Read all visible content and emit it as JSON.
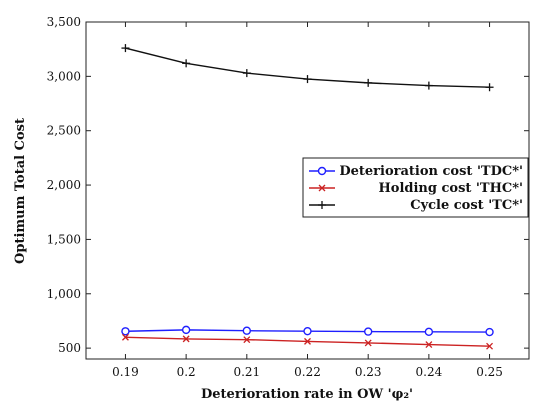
{
  "chart_data": {
    "type": "line",
    "x": [
      0.19,
      0.2,
      0.21,
      0.22,
      0.23,
      0.24,
      0.25
    ],
    "x_tick_labels": [
      "0.19",
      "0.2",
      "0.21",
      "0.22",
      "0.23",
      "0.24",
      "0.25"
    ],
    "y_ticks": [
      500,
      1000,
      1500,
      2000,
      2500,
      3000,
      3500
    ],
    "y_tick_labels": [
      "500",
      "1,000",
      "1,500",
      "2,000",
      "2,500",
      "3,000",
      "3,500"
    ],
    "xlim": [
      0.1835,
      0.2565
    ],
    "ylim": [
      400,
      3500
    ],
    "xlabel": "Deterioration rate in OW 'φ₂'",
    "ylabel": "Optimum Total Cost",
    "legend_position": "right",
    "series": [
      {
        "name": "Deterioration cost 'TDC*'",
        "color": "#1f1fff",
        "marker": "circle",
        "values": [
          655,
          668,
          660,
          656,
          652,
          650,
          648
        ]
      },
      {
        "name": "Holding cost 'THC*'",
        "color": "#cc2222",
        "marker": "x",
        "values": [
          600,
          585,
          578,
          562,
          548,
          533,
          518
        ]
      },
      {
        "name": "Cycle cost 'TC*'",
        "color": "#111111",
        "marker": "plus",
        "values": [
          3260,
          3120,
          3030,
          2975,
          2940,
          2915,
          2900
        ]
      }
    ]
  }
}
